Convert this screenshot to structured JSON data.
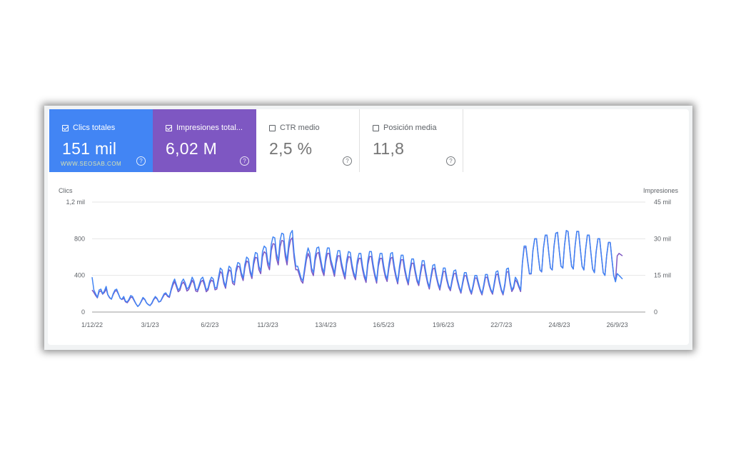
{
  "cards": [
    {
      "key": "clicks",
      "label": "Clics totales",
      "value": "151 mil",
      "checked": true
    },
    {
      "key": "impressions",
      "label": "Impresiones total...",
      "value": "6,02 M",
      "checked": true
    },
    {
      "key": "ctr",
      "label": "CTR medio",
      "value": "2,5 %",
      "checked": false
    },
    {
      "key": "position",
      "label": "Posición media",
      "value": "11,8",
      "checked": false
    }
  ],
  "watermark": "WWW.SEOSAB.COM",
  "help_glyph": "?",
  "colors": {
    "clicks": "#4285f4",
    "impressions": "#7e57c2",
    "grid": "#e6e6e6"
  },
  "chart_data": {
    "type": "line",
    "title": "",
    "ylabel": "Clics",
    "y2label": "Impresiones",
    "ylim": [
      0,
      1200
    ],
    "y2lim": [
      0,
      45000
    ],
    "yticks": [
      {
        "v": 0,
        "label": "0"
      },
      {
        "v": 400,
        "label": "400"
      },
      {
        "v": 800,
        "label": "800"
      },
      {
        "v": 1200,
        "label": "1,2 mil"
      }
    ],
    "y2ticks": [
      {
        "v": 0,
        "label": "0"
      },
      {
        "v": 15000,
        "label": "15 mil"
      },
      {
        "v": 30000,
        "label": "30 mil"
      },
      {
        "v": 45000,
        "label": "45 mil"
      }
    ],
    "x_range": [
      0,
      315
    ],
    "xticks": [
      {
        "i": 0,
        "label": "1/12/22"
      },
      {
        "i": 33,
        "label": "3/1/23"
      },
      {
        "i": 67,
        "label": "6/2/23"
      },
      {
        "i": 100,
        "label": "11/3/23"
      },
      {
        "i": 133,
        "label": "13/4/23"
      },
      {
        "i": 166,
        "label": "16/5/23"
      },
      {
        "i": 200,
        "label": "19/6/23"
      },
      {
        "i": 233,
        "label": "22/7/23"
      },
      {
        "i": 266,
        "label": "24/8/23"
      },
      {
        "i": 299,
        "label": "26/9/23"
      }
    ],
    "series": [
      {
        "name": "Clics",
        "axis": "left",
        "values": [
          380,
          240,
          200,
          160,
          240,
          250,
          200,
          230,
          280,
          190,
          160,
          140,
          200,
          240,
          250,
          200,
          150,
          140,
          170,
          120,
          110,
          140,
          180,
          170,
          130,
          90,
          60,
          80,
          120,
          160,
          140,
          100,
          80,
          70,
          100,
          140,
          170,
          150,
          110,
          120,
          160,
          200,
          210,
          180,
          170,
          250,
          320,
          360,
          300,
          240,
          260,
          330,
          360,
          320,
          250,
          270,
          320,
          380,
          340,
          250,
          240,
          300,
          360,
          380,
          320,
          240,
          260,
          340,
          380,
          360,
          260,
          270,
          380,
          480,
          460,
          340,
          280,
          410,
          500,
          480,
          340,
          320,
          470,
          540,
          530,
          430,
          370,
          520,
          600,
          580,
          460,
          390,
          560,
          650,
          640,
          500,
          450,
          660,
          720,
          700,
          560,
          500,
          740,
          820,
          810,
          640,
          560,
          780,
          860,
          850,
          660,
          560,
          760,
          860,
          890,
          650,
          500,
          500,
          440,
          370,
          340,
          480,
          620,
          700,
          640,
          480,
          430,
          610,
          700,
          710,
          600,
          490,
          430,
          600,
          700,
          700,
          570,
          500,
          420,
          580,
          670,
          670,
          540,
          460,
          390,
          570,
          660,
          650,
          520,
          430,
          380,
          560,
          640,
          640,
          500,
          410,
          350,
          560,
          660,
          660,
          520,
          420,
          340,
          540,
          640,
          640,
          510,
          410,
          360,
          520,
          640,
          650,
          510,
          410,
          330,
          500,
          620,
          620,
          490,
          390,
          320,
          470,
          580,
          580,
          460,
          360,
          310,
          450,
          560,
          560,
          440,
          340,
          270,
          400,
          510,
          520,
          410,
          320,
          260,
          370,
          480,
          480,
          370,
          290,
          250,
          360,
          450,
          460,
          360,
          280,
          220,
          330,
          430,
          430,
          340,
          260,
          210,
          300,
          400,
          400,
          320,
          250,
          200,
          300,
          410,
          410,
          320,
          250,
          210,
          320,
          440,
          450,
          340,
          250,
          200,
          310,
          470,
          480,
          330,
          240,
          280,
          380,
          350,
          290,
          240,
          540,
          720,
          720,
          560,
          420,
          420,
          670,
          800,
          800,
          620,
          460,
          440,
          700,
          840,
          840,
          650,
          480,
          460,
          720,
          860,
          870,
          670,
          500,
          480,
          730,
          890,
          880,
          680,
          500,
          470,
          720,
          880,
          880,
          680,
          500,
          460,
          680,
          840,
          840,
          650,
          470,
          430,
          660,
          800,
          800,
          610,
          430,
          400,
          620,
          760,
          760,
          570,
          400,
          330,
          420,
          400,
          380,
          360
        ]
      },
      {
        "name": "Impresiones",
        "axis": "right",
        "values": [
          9000,
          8000,
          6800,
          5800,
          8200,
          8700,
          7300,
          8000,
          9400,
          7000,
          5800,
          5300,
          7100,
          8500,
          8800,
          7300,
          5600,
          5100,
          5700,
          4200,
          3800,
          4800,
          6100,
          5900,
          4600,
          3300,
          2300,
          3000,
          4300,
          5600,
          5100,
          3700,
          3100,
          2700,
          3500,
          5000,
          6000,
          5400,
          4100,
          4400,
          5700,
          7000,
          7400,
          6400,
          6000,
          8800,
          11000,
          12500,
          10400,
          8300,
          8900,
          11400,
          12300,
          10900,
          8600,
          9200,
          11100,
          13000,
          11700,
          8600,
          8300,
          10400,
          12400,
          13000,
          11000,
          8300,
          9000,
          11800,
          13100,
          12400,
          9100,
          9400,
          13100,
          16600,
          15700,
          11700,
          9700,
          14200,
          17300,
          16600,
          11800,
          11100,
          16300,
          18800,
          18400,
          15000,
          12900,
          18000,
          20900,
          20300,
          16000,
          13700,
          19400,
          22400,
          22100,
          17300,
          15700,
          22600,
          24700,
          24000,
          19300,
          17300,
          25200,
          28000,
          27700,
          21900,
          19300,
          26600,
          29300,
          29000,
          22700,
          19300,
          26100,
          29500,
          30400,
          22400,
          17300,
          17300,
          15200,
          12800,
          11800,
          16600,
          21400,
          24000,
          22000,
          16600,
          14900,
          21100,
          24000,
          24400,
          20700,
          16900,
          14900,
          20700,
          24000,
          24000,
          19700,
          17300,
          14600,
          20000,
          23000,
          23000,
          18700,
          15900,
          13500,
          19700,
          22700,
          22400,
          18000,
          14900,
          13200,
          19300,
          22000,
          22000,
          17300,
          14200,
          12100,
          19300,
          22700,
          22700,
          18000,
          14600,
          11800,
          18700,
          22000,
          22000,
          17600,
          14200,
          12500,
          18000,
          22000,
          22400,
          17600,
          14200,
          11500,
          17300,
          21400,
          21400,
          16900,
          13500,
          11100,
          16300,
          20000,
          20000,
          15900,
          12500,
          10800,
          15600,
          19300,
          19300,
          15200,
          11800,
          9400,
          13900,
          17600,
          18000,
          14200,
          11100,
          9000,
          12800,
          16600,
          16600,
          12800,
          10100,
          8700,
          12500,
          15600,
          15900,
          12500,
          9700,
          7700,
          11500,
          14900,
          14900,
          11800,
          9000,
          7300,
          10400,
          13900,
          13900,
          11100,
          8700,
          7000,
          10400,
          14200,
          14200,
          11100,
          8700,
          7300,
          11100,
          15200,
          15600,
          11800,
          8700,
          7000,
          10800,
          16300,
          16600,
          11500,
          8400,
          9700,
          13200,
          12100,
          10100,
          8400,
          20000,
          26300,
          26500,
          20600,
          15600,
          15600,
          25100,
          29900,
          30000,
          23000,
          17200,
          16400,
          26200,
          31400,
          31500,
          24300,
          18000,
          17200,
          27000,
          32200,
          32600,
          25100,
          18700,
          18000,
          27300,
          33300,
          33000,
          25500,
          18700,
          17600,
          27000,
          33000,
          33000,
          25500,
          18700,
          17200,
          25500,
          31500,
          31500,
          24300,
          17600,
          16100,
          24700,
          30000,
          30000,
          22800,
          16100,
          15000,
          23200,
          28500,
          28500,
          21300,
          15000,
          12500,
          23000,
          24000,
          23500,
          23000
        ]
      }
    ]
  }
}
